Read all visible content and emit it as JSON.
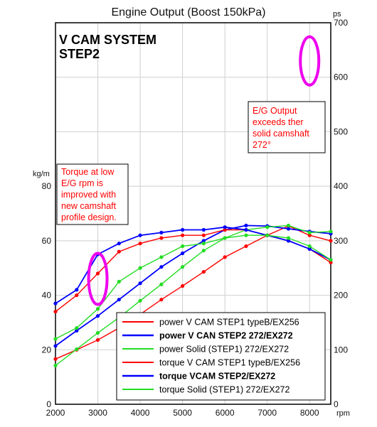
{
  "chart_data": {
    "type": "line",
    "title": "Engine Output (Boost 150kPa)",
    "system_label_line1": "V CAM SYSTEM",
    "system_label_line2": "STEP2",
    "ylabel_left": "kg/m",
    "ylabel_right": "ps",
    "xlabel": "rpm",
    "x_ticks": [
      2000,
      3000,
      4000,
      5000,
      6000,
      7000,
      8000
    ],
    "y_left_ticks": [
      0,
      20,
      40,
      60,
      80
    ],
    "y_right_ticks": [
      0,
      100,
      200,
      300,
      400,
      500,
      600,
      700
    ],
    "xlim": [
      2000,
      8500
    ],
    "ylim_left": [
      0,
      140
    ],
    "ylim_right": [
      0,
      700
    ],
    "grid": true,
    "legend_position": "bottom-right",
    "x": [
      2000,
      2500,
      3000,
      3500,
      4000,
      4500,
      5000,
      5500,
      6000,
      6500,
      7000,
      7500,
      8000,
      8500
    ],
    "series": [
      {
        "name": "power V CAM STEP1 typeB/EX256",
        "axis": "right",
        "color": "#ff0000",
        "bold": false,
        "values": [
          83,
          100,
          118,
          140,
          165,
          192,
          217,
          243,
          270,
          290,
          310,
          327,
          310,
          300
        ]
      },
      {
        "name": "power V CAN STEP2 272/EX272",
        "axis": "right",
        "color": "#0000ff",
        "bold": true,
        "values": [
          107,
          135,
          162,
          192,
          222,
          252,
          277,
          300,
          320,
          328,
          327,
          322,
          317,
          313
        ]
      },
      {
        "name": "power Solid (STEP1) 272/EX272",
        "axis": "right",
        "color": "#22dd22",
        "bold": false,
        "values": [
          71,
          101,
          131,
          159,
          190,
          220,
          252,
          282,
          305,
          320,
          325,
          328,
          315,
          317
        ]
      },
      {
        "name": "torque V CAM STEP1 typeB/EX256",
        "axis": "left",
        "color": "#ff0000",
        "bold": false,
        "values": [
          34,
          40,
          48,
          56,
          59,
          61,
          62,
          62,
          64,
          64,
          62,
          60,
          57,
          52
        ]
      },
      {
        "name": "torque VCAM STEP2/EX272",
        "axis": "left",
        "color": "#0000ff",
        "bold": true,
        "values": [
          37,
          42,
          55,
          59,
          62,
          63,
          64,
          64,
          65,
          64,
          62,
          60,
          57,
          53
        ]
      },
      {
        "name": "torque Solid (STEP1) 272/EX272",
        "axis": "left",
        "color": "#22dd22",
        "bold": false,
        "values": [
          24,
          28,
          35,
          45,
          50,
          54,
          58,
          59,
          61,
          62,
          62,
          61,
          58,
          53
        ]
      }
    ],
    "annotations": {
      "torque_note": [
        "Torque at low",
        "E/G rpm is",
        "improved with",
        "new camshaft",
        "profile design."
      ],
      "output_note": [
        "E/G Output",
        "exceeds ther",
        "solid camshaft",
        "272°"
      ],
      "note_color": "#ff0000",
      "highlight_color": "#ee00ee"
    }
  }
}
